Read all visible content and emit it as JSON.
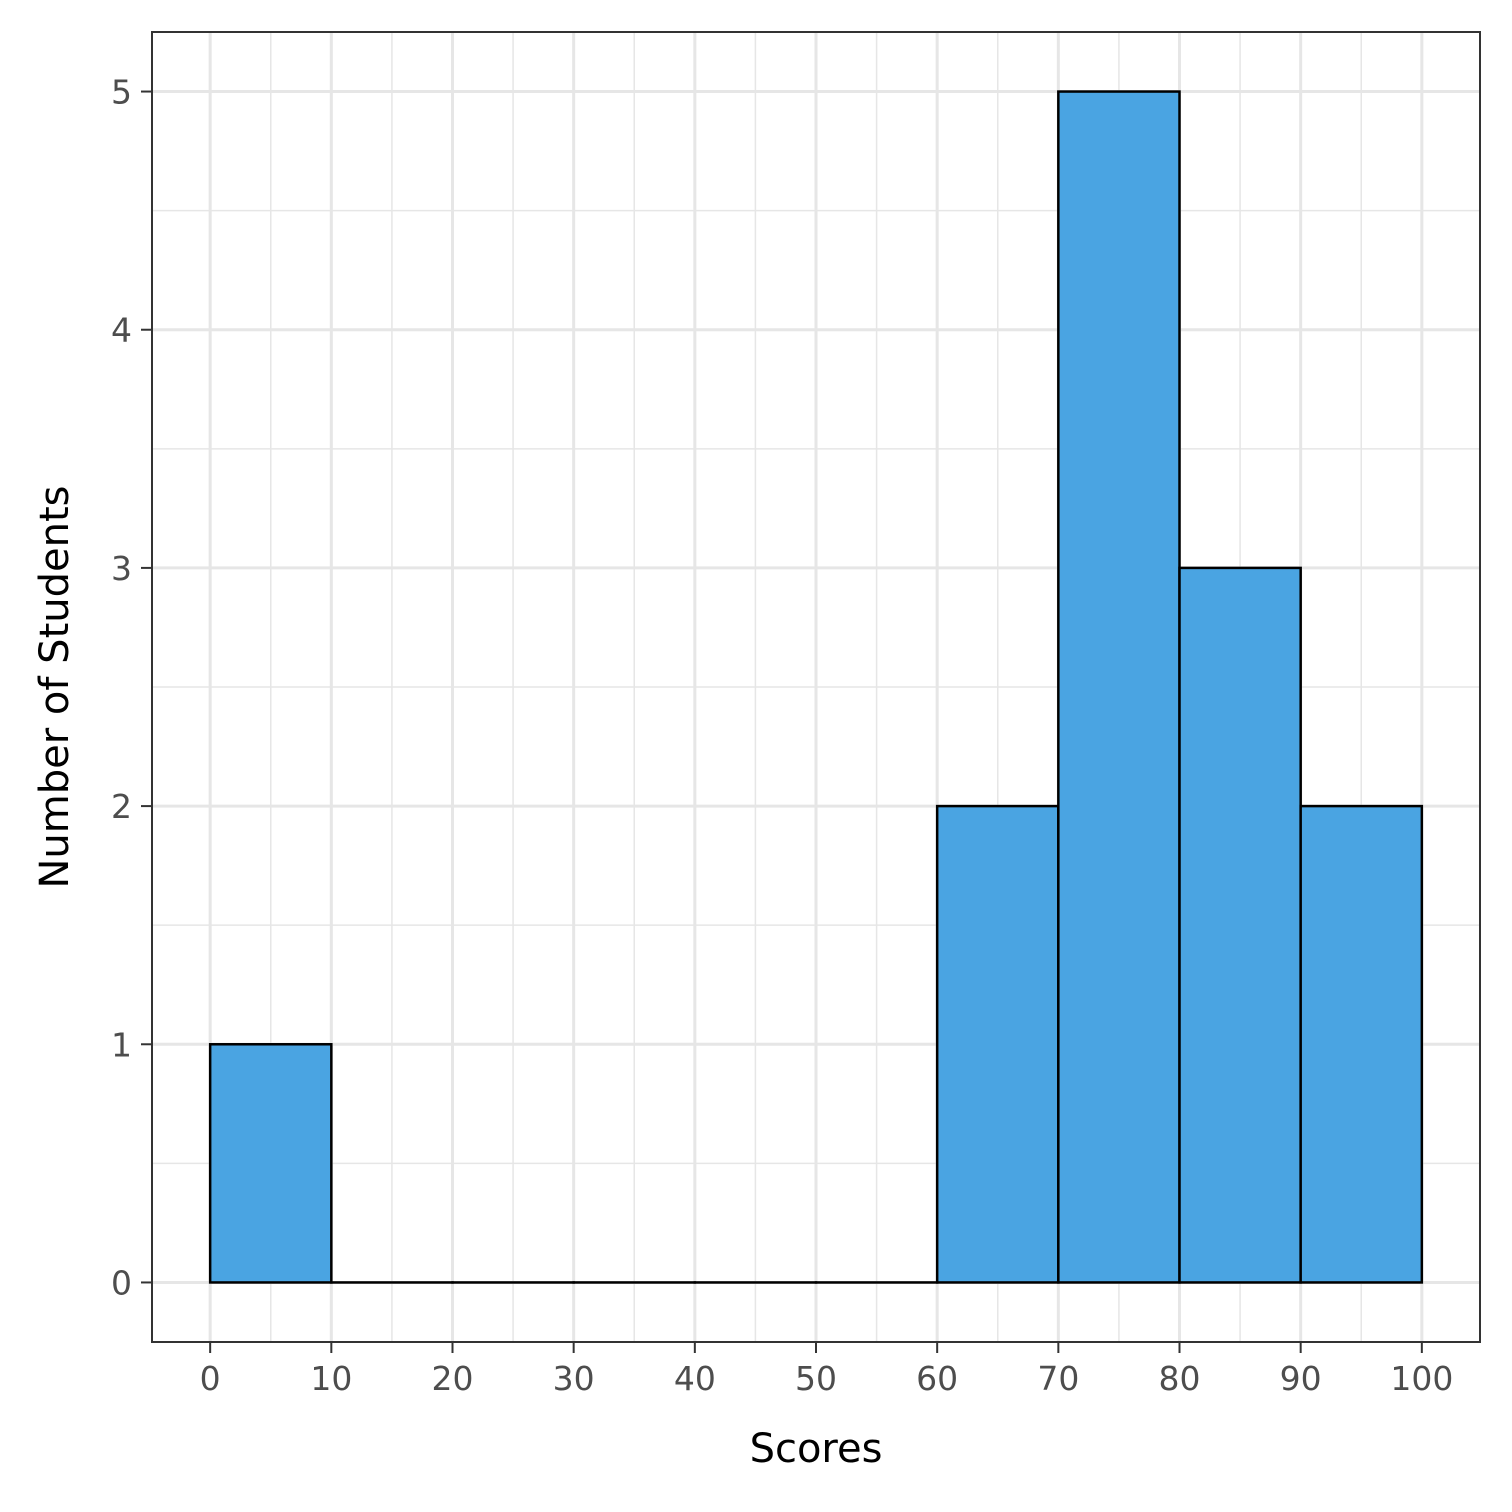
{
  "chart_data": {
    "type": "bar",
    "bins": [
      {
        "start": 0,
        "end": 10,
        "count": 1
      },
      {
        "start": 10,
        "end": 20,
        "count": 0
      },
      {
        "start": 20,
        "end": 30,
        "count": 0
      },
      {
        "start": 30,
        "end": 40,
        "count": 0
      },
      {
        "start": 40,
        "end": 50,
        "count": 0
      },
      {
        "start": 50,
        "end": 60,
        "count": 0
      },
      {
        "start": 60,
        "end": 70,
        "count": 2
      },
      {
        "start": 70,
        "end": 80,
        "count": 5
      },
      {
        "start": 80,
        "end": 90,
        "count": 3
      },
      {
        "start": 90,
        "end": 100,
        "count": 2
      }
    ],
    "x_ticks": [
      "0",
      "10",
      "20",
      "30",
      "40",
      "50",
      "60",
      "70",
      "80",
      "90",
      "100"
    ],
    "y_ticks": [
      "0",
      "1",
      "2",
      "3",
      "4",
      "5"
    ],
    "xlabel": "Scores",
    "ylabel": "Number of Students",
    "xlim": [
      -4.8,
      104.8
    ],
    "ylim": [
      -0.25,
      5.25
    ],
    "grid": true,
    "colors": {
      "bar_fill": "#4aa4e2",
      "bar_stroke": "#000000",
      "grid": "#e6e6e6",
      "panel_border": "#333333"
    }
  }
}
